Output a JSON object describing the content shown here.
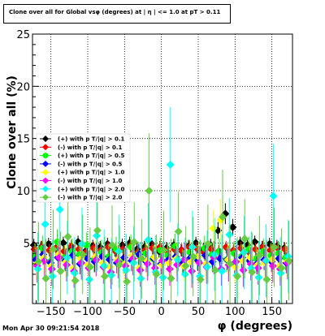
{
  "title": "Clone  over all for Global vsφ (degrees) at | η | <= 1.0 at pT > 0.11",
  "timestamp": "Mon Apr 30 09:21:54 2018",
  "chart_data": {
    "type": "scatter",
    "title": "Clone  over all for Global vsφ (degrees) at | η | <= 1.0 at pT > 0.11",
    "xlabel": "φ (degrees)",
    "ylabel": "Clone  over all (%)",
    "xlim": [
      -175,
      178
    ],
    "ylim": [
      -0.8,
      25
    ],
    "xticks": [
      -150,
      -100,
      -50,
      0,
      50,
      100,
      150
    ],
    "xtick_labels": [
      "−150",
      "−100",
      "−50",
      "0",
      "50",
      "100",
      "150"
    ],
    "yticks": [
      5,
      10,
      15,
      20,
      25
    ],
    "ytick_labels": [
      "5",
      "10",
      "15",
      "20",
      "25"
    ],
    "grid": true,
    "legend_position": "left-middle",
    "x": [
      -170,
      -160,
      -150,
      -140,
      -130,
      -120,
      -110,
      -100,
      -90,
      -80,
      -70,
      -60,
      -50,
      -40,
      -30,
      -20,
      -10,
      0,
      10,
      20,
      30,
      40,
      50,
      60,
      70,
      80,
      90,
      100,
      110,
      120,
      130,
      140,
      150,
      160,
      170
    ],
    "series": [
      {
        "name": "(+) with p T/|q| > 0.1",
        "color": "#000000",
        "marker": "diamond",
        "values": [
          4.8,
          4.6,
          4.9,
          4.5,
          5.0,
          4.4,
          5.1,
          4.2,
          4.7,
          4.6,
          4.9,
          4.3,
          4.8,
          5.0,
          4.4,
          4.6,
          4.9,
          4.2,
          4.5,
          4.8,
          4.3,
          4.7,
          5.0,
          4.4,
          4.8,
          6.2,
          7.8,
          6.5,
          5.0,
          4.8,
          5.1,
          4.6,
          4.9,
          4.7,
          4.5
        ],
        "errors": [
          0.6,
          0.6,
          0.6,
          0.6,
          0.6,
          0.6,
          0.6,
          0.6,
          0.6,
          0.6,
          0.6,
          0.6,
          0.6,
          0.6,
          0.6,
          0.6,
          0.6,
          0.6,
          0.6,
          0.6,
          0.6,
          0.6,
          0.6,
          0.6,
          0.6,
          0.8,
          1.0,
          0.8,
          0.6,
          0.6,
          0.6,
          0.6,
          0.6,
          0.6,
          0.6
        ]
      },
      {
        "name": "(-) with p T/|q| > 0.1",
        "color": "#ff0000",
        "marker": "diamond",
        "values": [
          4.4,
          4.6,
          4.3,
          4.5,
          4.2,
          4.7,
          4.4,
          4.1,
          4.5,
          4.3,
          4.6,
          4.2,
          4.4,
          4.7,
          4.1,
          4.3,
          4.5,
          4.6,
          4.2,
          4.4,
          4.3,
          4.6,
          4.5,
          4.1,
          4.4,
          4.2,
          4.6,
          4.3,
          4.5,
          4.2,
          4.4,
          4.6,
          4.3,
          4.5,
          4.4
        ],
        "errors": [
          0.6,
          0.6,
          0.6,
          0.6,
          0.6,
          0.6,
          0.6,
          0.6,
          0.6,
          0.6,
          0.6,
          0.6,
          0.6,
          0.6,
          0.6,
          0.6,
          0.6,
          0.6,
          0.6,
          0.6,
          0.6,
          0.6,
          0.6,
          0.6,
          0.6,
          0.6,
          0.6,
          0.6,
          0.6,
          0.6,
          0.6,
          0.6,
          0.6,
          0.6,
          0.6
        ]
      },
      {
        "name": "(+) with p T/|q| > 0.5",
        "color": "#00ff00",
        "marker": "circle",
        "values": [
          3.8,
          4.5,
          3.2,
          5.1,
          3.6,
          4.2,
          3.9,
          4.8,
          3.4,
          4.1,
          3.7,
          4.4,
          3.3,
          4.6,
          3.9,
          4.0,
          3.5,
          4.3,
          3.8,
          4.7,
          3.2,
          4.1,
          3.6,
          4.5,
          3.9,
          4.2,
          3.4,
          4.0,
          3.7,
          4.4,
          3.5,
          4.2,
          3.8,
          4.0,
          3.6
        ],
        "errors": [
          1.2,
          1.2,
          1.2,
          1.2,
          1.2,
          1.2,
          1.2,
          1.2,
          1.2,
          1.2,
          1.2,
          1.2,
          1.2,
          1.2,
          1.2,
          1.2,
          1.2,
          1.2,
          1.2,
          1.2,
          1.2,
          1.2,
          1.2,
          1.2,
          1.2,
          1.2,
          1.2,
          1.2,
          1.2,
          1.2,
          1.2,
          1.2,
          1.2,
          1.2,
          1.2
        ]
      },
      {
        "name": "(-) with p T/|q| > 0.5",
        "color": "#0000ff",
        "marker": "diamond",
        "values": [
          3.4,
          3.9,
          3.1,
          3.6,
          3.3,
          3.8,
          3.0,
          3.5,
          3.2,
          3.7,
          3.4,
          3.1,
          3.6,
          3.3,
          3.9,
          3.2,
          3.5,
          3.0,
          3.4,
          3.7,
          3.1,
          3.6,
          3.3,
          3.8,
          3.2,
          3.5,
          3.4,
          3.1,
          3.6,
          3.3,
          3.0,
          3.4,
          3.2,
          3.5,
          3.1
        ],
        "errors": [
          1.0,
          1.0,
          1.0,
          1.0,
          1.0,
          1.0,
          1.0,
          1.0,
          1.0,
          1.0,
          1.0,
          1.0,
          1.0,
          1.0,
          1.0,
          1.0,
          1.0,
          1.0,
          1.0,
          1.0,
          1.0,
          1.0,
          1.0,
          1.0,
          1.0,
          1.0,
          1.0,
          1.0,
          1.0,
          1.0,
          1.0,
          1.0,
          1.0,
          1.0,
          1.0
        ]
      },
      {
        "name": "(+) with p T/|q| > 1.0",
        "color": "#ffff00",
        "marker": "diamond",
        "values": [
          3.0,
          3.6,
          2.8,
          3.9,
          3.2,
          2.6,
          3.5,
          2.9,
          3.7,
          3.1,
          2.7,
          3.4,
          3.0,
          3.8,
          2.6,
          3.3,
          3.6,
          2.9,
          3.1,
          3.5,
          2.8,
          3.2,
          3.7,
          3.0,
          6.4,
          7.2,
          3.4,
          2.7,
          3.3,
          3.6,
          2.9,
          3.1,
          3.4,
          2.8,
          3.2
        ],
        "errors": [
          1.5,
          1.5,
          1.5,
          1.5,
          1.5,
          1.5,
          1.5,
          1.5,
          1.5,
          1.5,
          1.5,
          1.5,
          1.5,
          1.5,
          1.5,
          1.5,
          1.5,
          1.5,
          1.5,
          1.5,
          1.5,
          1.5,
          1.5,
          1.5,
          1.8,
          2.0,
          1.5,
          1.5,
          1.5,
          1.5,
          1.5,
          1.5,
          1.5,
          1.5,
          1.5
        ]
      },
      {
        "name": "(-) with p T/|q| > 1.0",
        "color": "#ff00ff",
        "marker": "diamond",
        "values": [
          2.8,
          3.3,
          2.5,
          3.6,
          2.9,
          2.3,
          3.1,
          2.6,
          3.4,
          2.7,
          2.2,
          3.2,
          2.8,
          3.5,
          2.4,
          3.0,
          2.6,
          3.3,
          2.5,
          2.9,
          3.4,
          2.3,
          3.1,
          2.7,
          3.6,
          2.5,
          2.9,
          3.2,
          2.4,
          3.0,
          2.6,
          3.3,
          2.8,
          2.5,
          3.1
        ],
        "errors": [
          1.6,
          1.6,
          1.6,
          1.6,
          1.6,
          1.6,
          1.6,
          1.6,
          1.6,
          1.6,
          1.6,
          1.6,
          1.6,
          1.6,
          1.6,
          1.6,
          1.6,
          1.6,
          1.6,
          1.6,
          1.6,
          1.6,
          1.6,
          1.6,
          1.6,
          1.6,
          1.6,
          1.6,
          1.6,
          1.6,
          1.6,
          1.6,
          1.6,
          1.6,
          1.6
        ]
      },
      {
        "name": "(+) with p T/|q| > 2.0",
        "color": "#00ffff",
        "marker": "diamond",
        "values": [
          2.5,
          6.8,
          1.8,
          8.2,
          3.6,
          2.1,
          4.9,
          1.5,
          5.7,
          2.8,
          1.9,
          4.2,
          2.4,
          3.1,
          1.6,
          5.3,
          2.2,
          1.7,
          12.5,
          3.4,
          2.0,
          4.6,
          1.8,
          2.7,
          3.9,
          2.3,
          5.8,
          1.9,
          4.1,
          2.6,
          1.7,
          3.3,
          9.5,
          2.1,
          3.7
        ],
        "errors": [
          3.5,
          3.5,
          3.5,
          3.5,
          3.5,
          3.5,
          3.5,
          3.5,
          3.5,
          3.5,
          3.5,
          3.5,
          3.5,
          3.5,
          3.5,
          3.5,
          3.5,
          3.5,
          5.5,
          3.5,
          3.5,
          3.5,
          3.5,
          3.5,
          3.5,
          3.5,
          3.5,
          3.5,
          3.5,
          3.5,
          3.5,
          3.5,
          5.0,
          3.5,
          3.5
        ]
      },
      {
        "name": "(-) with p T/|q| > 2.0",
        "color": "#66cc44",
        "marker": "diamond",
        "values": [
          3.2,
          1.6,
          4.4,
          2.3,
          5.6,
          1.4,
          3.9,
          2.7,
          6.2,
          1.8,
          4.8,
          2.9,
          1.3,
          5.1,
          3.5,
          10.0,
          2.0,
          4.3,
          1.6,
          6.1,
          2.8,
          3.7,
          1.5,
          4.9,
          2.4,
          7.5,
          3.0,
          1.8,
          5.4,
          2.2,
          3.8,
          1.5,
          4.6,
          2.6,
          3.3
        ],
        "errors": [
          3.8,
          3.8,
          3.8,
          3.8,
          3.8,
          3.8,
          3.8,
          3.8,
          3.8,
          3.8,
          3.8,
          3.8,
          3.8,
          3.8,
          3.8,
          5.5,
          3.8,
          3.8,
          3.8,
          3.8,
          3.8,
          3.8,
          3.8,
          3.8,
          3.8,
          4.5,
          3.8,
          3.8,
          3.8,
          3.8,
          3.8,
          3.8,
          3.8,
          3.8,
          3.8
        ]
      }
    ]
  }
}
